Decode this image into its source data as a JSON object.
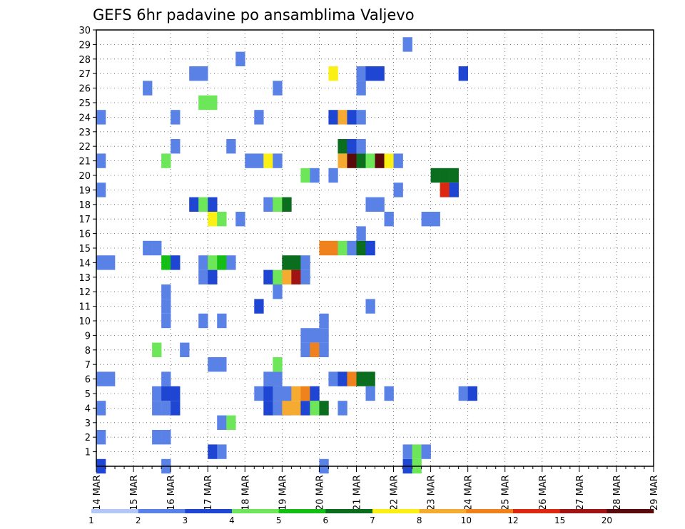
{
  "chart_data": {
    "type": "heatmap",
    "title": "GEFS 6hr padavine po ansamblima Valjevo",
    "x_tick_labels": [
      "14 MAR",
      "15 MAR",
      "16 MAR",
      "17 MAR",
      "18 MAR",
      "19 MAR",
      "20 MAR",
      "21 MAR",
      "22 MAR",
      "23 MAR",
      "24 MAR",
      "25 MAR",
      "26 MAR",
      "27 MAR",
      "28 MAR",
      "29 MAR"
    ],
    "y_tick_labels": [
      "1",
      "2",
      "3",
      "4",
      "5",
      "6",
      "7",
      "8",
      "9",
      "10",
      "11",
      "12",
      "13",
      "14",
      "15",
      "16",
      "17",
      "18",
      "19",
      "20",
      "21",
      "22",
      "23",
      "24",
      "25",
      "26",
      "27",
      "28",
      "29",
      "30"
    ],
    "ylim": [
      0,
      30
    ],
    "grid": true,
    "x_step_hours": 6,
    "cell_value_unit": "mm/6h color class",
    "colorbar": {
      "position": "bottom",
      "labels": [
        "1",
        "2",
        "3",
        "4",
        "5",
        "6",
        "7",
        "8",
        "10",
        "12",
        "15",
        "20"
      ],
      "colors": [
        "#B4C8F5",
        "#5A82E6",
        "#1E46D2",
        "#6EE65A",
        "#14BE14",
        "#0A6E1E",
        "#FAF014",
        "#F5AA32",
        "#F0821E",
        "#DC280F",
        "#A01414",
        "#5A0A0A"
      ]
    },
    "cells": [
      [
        0,
        24,
        1
      ],
      [
        0,
        21,
        1
      ],
      [
        0,
        19,
        1
      ],
      [
        0,
        14,
        1
      ],
      [
        1,
        14,
        1
      ],
      [
        0,
        6,
        1
      ],
      [
        1,
        6,
        1
      ],
      [
        0,
        4,
        1
      ],
      [
        0,
        2,
        1
      ],
      [
        0,
        0,
        2
      ],
      [
        5,
        15,
        1
      ],
      [
        6,
        15,
        1
      ],
      [
        5,
        26,
        1
      ],
      [
        6,
        5,
        1
      ],
      [
        6,
        4,
        1
      ],
      [
        7,
        4,
        1
      ],
      [
        7,
        6,
        1
      ],
      [
        6,
        2,
        1
      ],
      [
        7,
        2,
        1
      ],
      [
        7,
        12,
        1
      ],
      [
        7,
        11,
        1
      ],
      [
        7,
        10,
        1
      ],
      [
        7,
        0,
        1
      ],
      [
        7,
        21,
        3
      ],
      [
        7,
        14,
        4
      ],
      [
        8,
        14,
        2
      ],
      [
        8,
        24,
        1
      ],
      [
        8,
        22,
        1
      ],
      [
        7,
        5,
        2
      ],
      [
        8,
        5,
        2
      ],
      [
        8,
        4,
        2
      ],
      [
        6,
        8,
        3
      ],
      [
        9,
        8,
        1
      ],
      [
        10,
        18,
        2
      ],
      [
        10,
        27,
        1
      ],
      [
        11,
        27,
        1
      ],
      [
        11,
        18,
        3
      ],
      [
        11,
        14,
        1
      ],
      [
        11,
        13,
        1
      ],
      [
        11,
        10,
        1
      ],
      [
        11,
        25,
        3
      ],
      [
        12,
        25,
        3
      ],
      [
        12,
        18,
        2
      ],
      [
        12,
        17,
        6
      ],
      [
        13,
        17,
        3
      ],
      [
        12,
        14,
        3
      ],
      [
        13,
        14,
        4
      ],
      [
        14,
        14,
        1
      ],
      [
        12,
        13,
        2
      ],
      [
        12,
        1,
        2
      ],
      [
        13,
        1,
        1
      ],
      [
        12,
        7,
        1
      ],
      [
        13,
        7,
        1
      ],
      [
        13,
        10,
        1
      ],
      [
        13,
        3,
        1
      ],
      [
        14,
        3,
        3
      ],
      [
        14,
        22,
        1
      ],
      [
        15,
        28,
        1
      ],
      [
        15,
        17,
        1
      ],
      [
        19,
        5,
        2
      ],
      [
        20,
        4,
        2
      ],
      [
        16,
        21,
        1
      ],
      [
        17,
        21,
        1
      ],
      [
        18,
        21,
        6
      ],
      [
        19,
        21,
        1
      ],
      [
        17,
        24,
        1
      ],
      [
        17,
        11,
        2
      ],
      [
        17,
        5,
        1
      ],
      [
        18,
        5,
        2
      ],
      [
        18,
        4,
        2
      ],
      [
        19,
        4,
        1
      ],
      [
        18,
        6,
        1
      ],
      [
        19,
        6,
        1
      ],
      [
        18,
        18,
        1
      ],
      [
        19,
        18,
        3
      ],
      [
        20,
        18,
        5
      ],
      [
        18,
        13,
        2
      ],
      [
        19,
        13,
        3
      ],
      [
        19,
        12,
        1
      ],
      [
        19,
        7,
        3
      ],
      [
        19,
        26,
        1
      ],
      [
        19,
        5,
        1
      ],
      [
        20,
        5,
        1
      ],
      [
        20,
        4,
        7
      ],
      [
        21,
        4,
        7
      ],
      [
        22,
        4,
        2
      ],
      [
        23,
        4,
        3
      ],
      [
        24,
        4,
        5
      ],
      [
        21,
        5,
        7
      ],
      [
        22,
        5,
        8
      ],
      [
        23,
        5,
        2
      ],
      [
        20,
        14,
        5
      ],
      [
        21,
        14,
        5
      ],
      [
        22,
        14,
        1
      ],
      [
        20,
        13,
        7
      ],
      [
        21,
        13,
        10
      ],
      [
        22,
        13,
        1
      ],
      [
        22,
        20,
        3
      ],
      [
        23,
        20,
        1
      ],
      [
        22,
        9,
        1
      ],
      [
        23,
        9,
        1
      ],
      [
        22,
        8,
        1
      ],
      [
        23,
        8,
        8
      ],
      [
        24,
        8,
        1
      ],
      [
        24,
        15,
        8
      ],
      [
        25,
        15,
        8
      ],
      [
        26,
        15,
        3
      ],
      [
        27,
        15,
        1
      ],
      [
        28,
        15,
        5
      ],
      [
        29,
        15,
        2
      ],
      [
        24,
        10,
        1
      ],
      [
        24,
        9,
        1
      ],
      [
        24,
        0,
        1
      ],
      [
        25,
        24,
        2
      ],
      [
        26,
        24,
        7
      ],
      [
        27,
        24,
        2
      ],
      [
        28,
        24,
        1
      ],
      [
        25,
        27,
        6
      ],
      [
        25,
        20,
        1
      ],
      [
        25,
        6,
        1
      ],
      [
        26,
        6,
        2
      ],
      [
        27,
        6,
        8
      ],
      [
        28,
        6,
        5
      ],
      [
        29,
        6,
        5
      ],
      [
        26,
        4,
        1
      ],
      [
        26,
        22,
        5
      ],
      [
        27,
        22,
        2
      ],
      [
        28,
        22,
        1
      ],
      [
        26,
        21,
        7
      ],
      [
        27,
        21,
        11
      ],
      [
        28,
        21,
        5
      ],
      [
        29,
        21,
        3
      ],
      [
        30,
        21,
        11
      ],
      [
        31,
        21,
        6
      ],
      [
        32,
        21,
        1
      ],
      [
        28,
        27,
        1
      ],
      [
        29,
        27,
        2
      ],
      [
        30,
        27,
        2
      ],
      [
        28,
        26,
        1
      ],
      [
        28,
        16,
        1
      ],
      [
        29,
        18,
        1
      ],
      [
        30,
        18,
        1
      ],
      [
        29,
        11,
        1
      ],
      [
        29,
        5,
        1
      ],
      [
        31,
        17,
        1
      ],
      [
        31,
        5,
        1
      ],
      [
        32,
        19,
        1
      ],
      [
        33,
        0,
        2
      ],
      [
        33,
        1,
        1
      ],
      [
        34,
        0,
        3
      ],
      [
        34,
        1,
        3
      ],
      [
        35,
        1,
        1
      ],
      [
        33,
        29,
        1
      ],
      [
        35,
        17,
        1
      ],
      [
        36,
        17,
        1
      ],
      [
        36,
        20,
        5
      ],
      [
        37,
        20,
        5
      ],
      [
        38,
        20,
        5
      ],
      [
        37,
        19,
        9
      ],
      [
        38,
        19,
        2
      ],
      [
        39,
        27,
        2
      ],
      [
        39,
        5,
        1
      ],
      [
        40,
        5,
        2
      ]
    ]
  }
}
